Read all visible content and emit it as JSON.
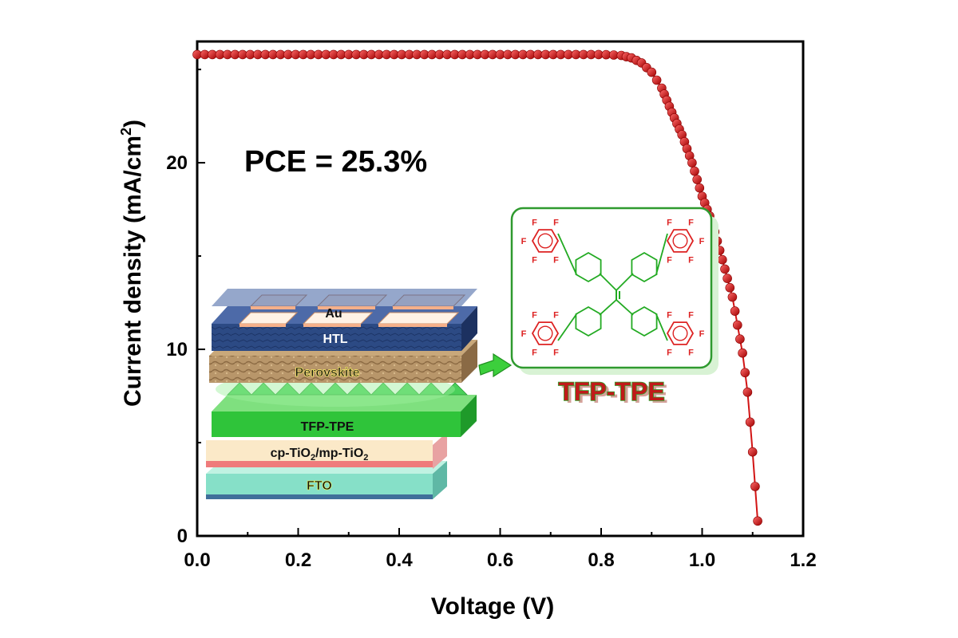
{
  "chart_data": {
    "type": "scatter",
    "title": "",
    "xlabel": "Voltage (V)",
    "ylabel_main": "Current density (mA/cm",
    "ylabel_sup": "2",
    "ylabel_close": ")",
    "xlim": [
      0.0,
      1.2
    ],
    "ylim": [
      0,
      26.5
    ],
    "x_ticks": [
      0.0,
      0.2,
      0.4,
      0.6,
      0.8,
      1.0,
      1.2
    ],
    "x_tick_labels": [
      "0.0",
      "0.2",
      "0.4",
      "0.6",
      "0.8",
      "1.0",
      "1.2"
    ],
    "y_ticks": [
      0,
      10,
      20
    ],
    "y_tick_labels": [
      "0",
      "10",
      "20"
    ],
    "grid": false,
    "legend": "none",
    "series_color": "#d21414",
    "annotation": "PCE = 25.3%",
    "jv_curve": [
      [
        0.0,
        25.8
      ],
      [
        0.8,
        25.8
      ],
      [
        0.82,
        25.78
      ],
      [
        0.84,
        25.75
      ],
      [
        0.86,
        25.62
      ],
      [
        0.88,
        25.35
      ],
      [
        0.9,
        24.85
      ],
      [
        0.92,
        24.0
      ],
      [
        0.94,
        22.7
      ],
      [
        0.96,
        21.5
      ],
      [
        0.98,
        20.0
      ],
      [
        1.0,
        18.2
      ],
      [
        1.02,
        16.8
      ],
      [
        1.04,
        14.8
      ],
      [
        1.06,
        12.8
      ],
      [
        1.08,
        9.8
      ],
      [
        1.09,
        7.7
      ],
      [
        1.1,
        4.5
      ],
      [
        1.11,
        0.8
      ]
    ]
  },
  "device_stack": {
    "layers": [
      "Au",
      "HTL",
      "Perovskite",
      "TFP-TPE",
      "cp-TiO",
      "/mp-TiO",
      "FTO"
    ],
    "subscript": "2"
  },
  "molecule": {
    "name": "TFP-TPE",
    "atom_label": "F",
    "color": "#22aa22"
  }
}
